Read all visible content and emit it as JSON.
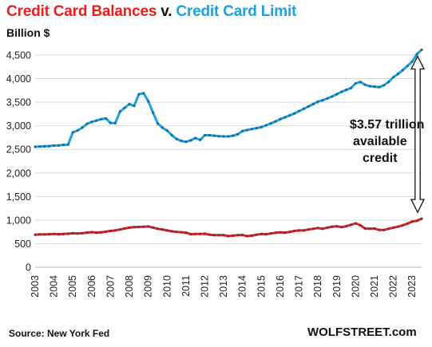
{
  "header": {
    "title_part1": "Credit Card Balances",
    "title_part2": "v.",
    "title_part3": "Credit Card Limit",
    "unit": "Billion $"
  },
  "footer": {
    "source": "Source: New York Fed",
    "brand": "WOLFSTREET.com"
  },
  "annotation": {
    "line1": "$3.57 trillion",
    "line2": "available",
    "line3": "credit"
  },
  "colors": {
    "balances": "#ee1c1c",
    "limit": "#1aa3e0",
    "grid": "#d9d9d9",
    "arrow": "#ffffff"
  },
  "chart_data": {
    "type": "line",
    "ylim": [
      0,
      4700
    ],
    "xlim": [
      2003.0,
      2023.5
    ],
    "y_ticks": [
      0,
      500,
      1000,
      1500,
      2000,
      2500,
      3000,
      3500,
      4000,
      4500
    ],
    "y_tick_labels": [
      "0",
      "500",
      "1,000",
      "1,500",
      "2,000",
      "2,500",
      "3,000",
      "3,500",
      "4,000",
      "4,500"
    ],
    "x_ticks": [
      2003,
      2004,
      2005,
      2006,
      2007,
      2008,
      2009,
      2010,
      2011,
      2012,
      2013,
      2014,
      2015,
      2016,
      2017,
      2018,
      2019,
      2020,
      2021,
      2022,
      2023
    ],
    "x_tick_labels": [
      "2003",
      "2004",
      "2005",
      "2006",
      "2007",
      "2008",
      "2009",
      "2010",
      "2011",
      "2012",
      "2013",
      "2014",
      "2015",
      "2016",
      "2017",
      "2018",
      "2019",
      "2020",
      "2021",
      "2022",
      "2023"
    ],
    "grid": true,
    "series": [
      {
        "name": "Credit Card Balances",
        "color": "#ee1c1c",
        "points": [
          [
            2003.0,
            690
          ],
          [
            2003.25,
            695
          ],
          [
            2003.5,
            695
          ],
          [
            2003.75,
            700
          ],
          [
            2004.0,
            705
          ],
          [
            2004.25,
            700
          ],
          [
            2004.5,
            705
          ],
          [
            2004.75,
            710
          ],
          [
            2005.0,
            720
          ],
          [
            2005.25,
            715
          ],
          [
            2005.5,
            720
          ],
          [
            2005.75,
            735
          ],
          [
            2006.0,
            745
          ],
          [
            2006.25,
            735
          ],
          [
            2006.5,
            740
          ],
          [
            2006.75,
            755
          ],
          [
            2007.0,
            770
          ],
          [
            2007.25,
            780
          ],
          [
            2007.5,
            800
          ],
          [
            2007.75,
            820
          ],
          [
            2008.0,
            840
          ],
          [
            2008.25,
            850
          ],
          [
            2008.5,
            855
          ],
          [
            2008.75,
            860
          ],
          [
            2009.0,
            865
          ],
          [
            2009.25,
            840
          ],
          [
            2009.5,
            815
          ],
          [
            2009.75,
            800
          ],
          [
            2010.0,
            780
          ],
          [
            2010.25,
            762
          ],
          [
            2010.5,
            750
          ],
          [
            2010.75,
            742
          ],
          [
            2011.0,
            733
          ],
          [
            2011.25,
            700
          ],
          [
            2011.5,
            705
          ],
          [
            2011.75,
            705
          ],
          [
            2012.0,
            710
          ],
          [
            2012.25,
            690
          ],
          [
            2012.5,
            680
          ],
          [
            2012.75,
            680
          ],
          [
            2013.0,
            680
          ],
          [
            2013.25,
            660
          ],
          [
            2013.5,
            670
          ],
          [
            2013.75,
            680
          ],
          [
            2014.0,
            683
          ],
          [
            2014.25,
            660
          ],
          [
            2014.5,
            670
          ],
          [
            2014.75,
            690
          ],
          [
            2015.0,
            705
          ],
          [
            2015.25,
            700
          ],
          [
            2015.5,
            715
          ],
          [
            2015.75,
            730
          ],
          [
            2016.0,
            740
          ],
          [
            2016.25,
            735
          ],
          [
            2016.5,
            750
          ],
          [
            2016.75,
            770
          ],
          [
            2017.0,
            780
          ],
          [
            2017.25,
            780
          ],
          [
            2017.5,
            800
          ],
          [
            2017.75,
            815
          ],
          [
            2018.0,
            830
          ],
          [
            2018.25,
            815
          ],
          [
            2018.5,
            840
          ],
          [
            2018.75,
            860
          ],
          [
            2019.0,
            870
          ],
          [
            2019.25,
            850
          ],
          [
            2019.5,
            870
          ],
          [
            2019.75,
            900
          ],
          [
            2020.0,
            930
          ],
          [
            2020.25,
            890
          ],
          [
            2020.5,
            820
          ],
          [
            2020.75,
            815
          ],
          [
            2021.0,
            820
          ],
          [
            2021.25,
            790
          ],
          [
            2021.5,
            790
          ],
          [
            2021.75,
            815
          ],
          [
            2022.0,
            840
          ],
          [
            2022.25,
            860
          ],
          [
            2022.5,
            890
          ],
          [
            2022.75,
            925
          ],
          [
            2023.0,
            970
          ],
          [
            2023.25,
            985
          ],
          [
            2023.5,
            1030
          ]
        ]
      },
      {
        "name": "Credit Card Limit",
        "color": "#1aa3e0",
        "points": [
          [
            2003.0,
            2555
          ],
          [
            2003.25,
            2560
          ],
          [
            2003.5,
            2565
          ],
          [
            2003.75,
            2570
          ],
          [
            2004.0,
            2580
          ],
          [
            2004.25,
            2585
          ],
          [
            2004.5,
            2595
          ],
          [
            2004.75,
            2600
          ],
          [
            2005.0,
            2860
          ],
          [
            2005.25,
            2900
          ],
          [
            2005.5,
            2960
          ],
          [
            2005.75,
            3040
          ],
          [
            2006.0,
            3080
          ],
          [
            2006.25,
            3110
          ],
          [
            2006.5,
            3140
          ],
          [
            2006.75,
            3155
          ],
          [
            2007.0,
            3060
          ],
          [
            2007.25,
            3055
          ],
          [
            2007.5,
            3300
          ],
          [
            2007.75,
            3380
          ],
          [
            2008.0,
            3460
          ],
          [
            2008.25,
            3420
          ],
          [
            2008.5,
            3670
          ],
          [
            2008.75,
            3690
          ],
          [
            2009.0,
            3520
          ],
          [
            2009.25,
            3280
          ],
          [
            2009.5,
            3050
          ],
          [
            2009.75,
            2960
          ],
          [
            2010.0,
            2900
          ],
          [
            2010.25,
            2800
          ],
          [
            2010.5,
            2720
          ],
          [
            2010.75,
            2680
          ],
          [
            2011.0,
            2660
          ],
          [
            2011.25,
            2690
          ],
          [
            2011.5,
            2740
          ],
          [
            2011.75,
            2700
          ],
          [
            2012.0,
            2800
          ],
          [
            2012.25,
            2800
          ],
          [
            2012.5,
            2790
          ],
          [
            2012.75,
            2780
          ],
          [
            2013.0,
            2775
          ],
          [
            2013.25,
            2775
          ],
          [
            2013.5,
            2790
          ],
          [
            2013.75,
            2820
          ],
          [
            2014.0,
            2890
          ],
          [
            2014.25,
            2910
          ],
          [
            2014.5,
            2930
          ],
          [
            2014.75,
            2950
          ],
          [
            2015.0,
            2970
          ],
          [
            2015.25,
            3010
          ],
          [
            2015.5,
            3050
          ],
          [
            2015.75,
            3090
          ],
          [
            2016.0,
            3140
          ],
          [
            2016.25,
            3180
          ],
          [
            2016.5,
            3220
          ],
          [
            2016.75,
            3260
          ],
          [
            2017.0,
            3310
          ],
          [
            2017.25,
            3360
          ],
          [
            2017.5,
            3410
          ],
          [
            2017.75,
            3460
          ],
          [
            2018.0,
            3510
          ],
          [
            2018.25,
            3540
          ],
          [
            2018.5,
            3580
          ],
          [
            2018.75,
            3620
          ],
          [
            2019.0,
            3670
          ],
          [
            2019.25,
            3720
          ],
          [
            2019.5,
            3760
          ],
          [
            2019.75,
            3800
          ],
          [
            2020.0,
            3900
          ],
          [
            2020.25,
            3930
          ],
          [
            2020.5,
            3870
          ],
          [
            2020.75,
            3840
          ],
          [
            2021.0,
            3830
          ],
          [
            2021.25,
            3820
          ],
          [
            2021.5,
            3860
          ],
          [
            2021.75,
            3930
          ],
          [
            2022.0,
            4030
          ],
          [
            2022.25,
            4100
          ],
          [
            2022.5,
            4180
          ],
          [
            2022.75,
            4270
          ],
          [
            2023.0,
            4360
          ],
          [
            2023.25,
            4520
          ],
          [
            2023.5,
            4610
          ]
        ]
      }
    ]
  }
}
